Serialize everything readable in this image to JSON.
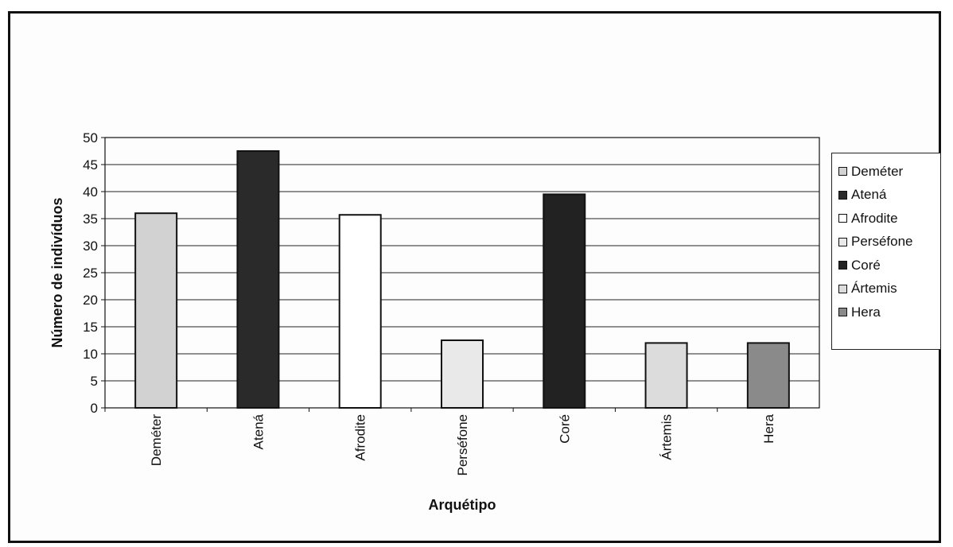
{
  "chart_data": {
    "type": "bar",
    "title": "",
    "xlabel": "Arquétipo",
    "ylabel": "Número de indivíduos",
    "ylim": [
      0,
      50
    ],
    "yticks": [
      0,
      5,
      10,
      15,
      20,
      25,
      30,
      35,
      40,
      45,
      50
    ],
    "grid": true,
    "legend_position": "right",
    "categories": [
      "Deméter",
      "Atená",
      "Afrodite",
      "Perséfone",
      "Coré",
      "Ártemis",
      "Hera"
    ],
    "values": [
      36,
      47.5,
      35.7,
      12.5,
      39.5,
      12,
      12
    ],
    "colors": [
      "#d2d2d2",
      "#2a2a2a",
      "#ffffff",
      "#e9e9e9",
      "#222222",
      "#dcdcdc",
      "#8a8a8a"
    ],
    "legend": [
      "Deméter",
      "Atená",
      "Afrodite",
      "Perséfone",
      "Coré",
      "Ártemis",
      "Hera"
    ]
  }
}
